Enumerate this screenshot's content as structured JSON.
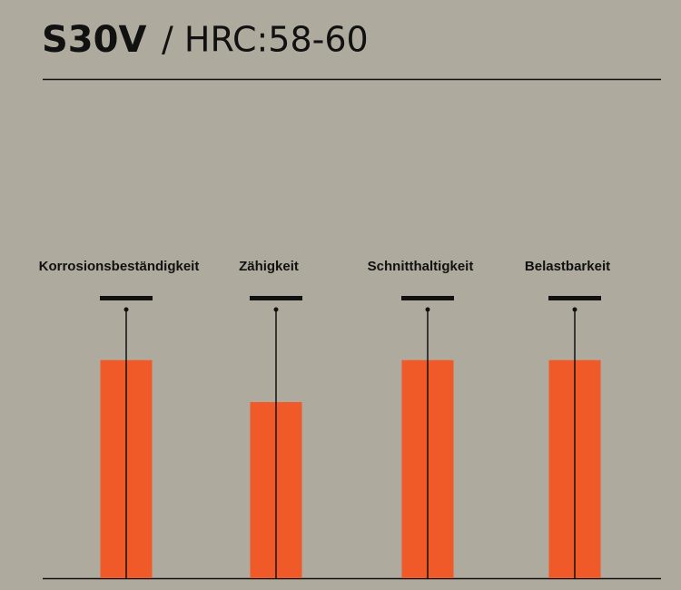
{
  "chart_data": {
    "type": "bar",
    "title": "S30V",
    "subtitle": "/ HRC:58-60",
    "categories": [
      "Korrosionsbeständigkeit",
      "Zähigkeit",
      "Schnitthaltigkeit",
      "Belastbarkeit"
    ],
    "values": [
      7.8,
      6.3,
      7.8,
      7.8
    ],
    "color": "#f05a28",
    "ylim": [
      0,
      10
    ]
  }
}
